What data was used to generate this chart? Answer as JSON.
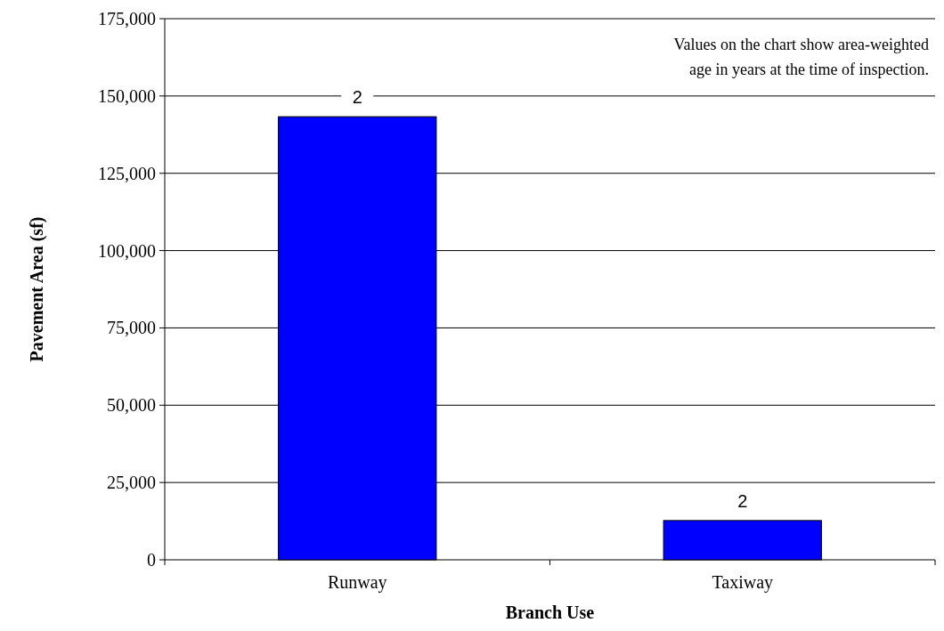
{
  "chart_data": {
    "type": "bar",
    "xlabel": "Branch Use",
    "ylabel": "Pavement Area (sf)",
    "categories": [
      "Runway",
      "Taxiway"
    ],
    "values": [
      143300,
      12700
    ],
    "color": "#0000ff",
    "ylim": [
      0,
      175000
    ],
    "yticks": [
      {
        "value": 0,
        "label": "0"
      },
      {
        "value": 25000,
        "label": "25,000"
      },
      {
        "value": 50000,
        "label": "50,000"
      },
      {
        "value": 75000,
        "label": "75,000"
      },
      {
        "value": 100000,
        "label": "100,000"
      },
      {
        "value": 125000,
        "label": "125,000"
      },
      {
        "value": 150000,
        "label": "150,000"
      },
      {
        "value": 175000,
        "label": "175,000"
      }
    ],
    "grid": "y",
    "annotations": [
      "Values on the chart show area-weighted age in years at the time of inspection.",
      {
        "text": "2",
        "x": "Runway",
        "y": 143300
      },
      {
        "text": "2",
        "x": "Taxiway",
        "y": 12700
      }
    ]
  }
}
